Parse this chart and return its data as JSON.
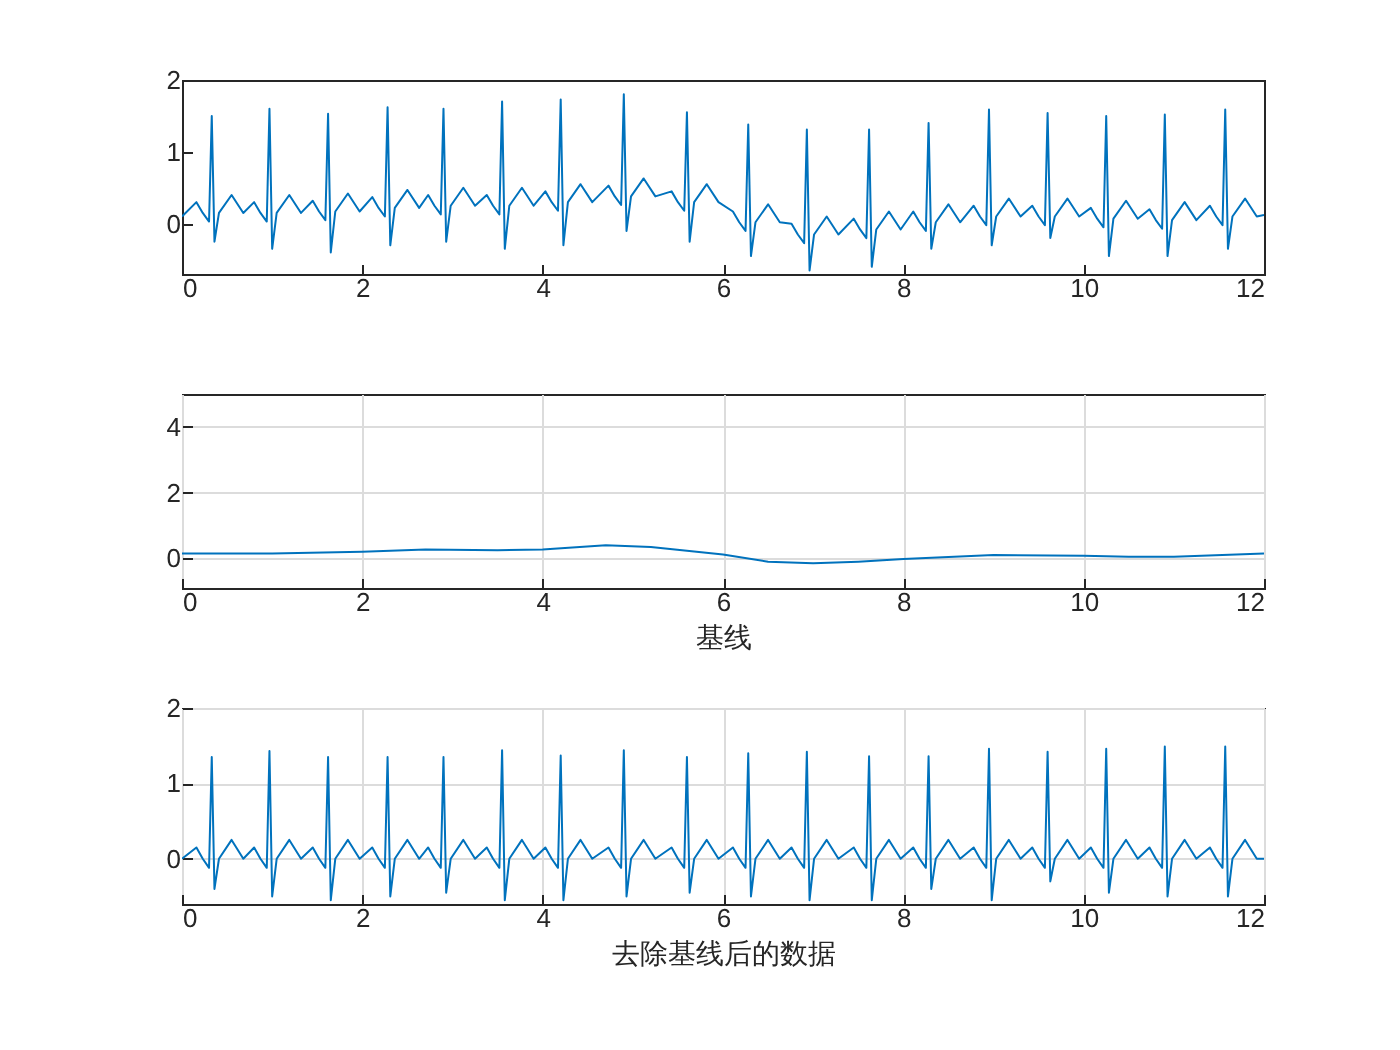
{
  "chart_data": [
    {
      "type": "line",
      "color": "#0072bd",
      "grid": false,
      "xlim": [
        0,
        12
      ],
      "xticks": [
        0,
        2,
        4,
        6,
        8,
        10,
        12
      ],
      "ylim": [
        -0.7,
        2
      ],
      "yticks": [
        0,
        1,
        2
      ],
      "x": [
        0,
        0.16,
        0.23,
        0.3,
        0.33,
        0.36,
        0.41,
        0.55,
        0.68,
        0.8,
        0.87,
        0.94,
        0.97,
        1.0,
        1.05,
        1.19,
        1.32,
        1.45,
        1.52,
        1.59,
        1.62,
        1.65,
        1.7,
        1.84,
        1.97,
        2.11,
        2.18,
        2.25,
        2.28,
        2.31,
        2.36,
        2.5,
        2.63,
        2.73,
        2.8,
        2.87,
        2.9,
        2.93,
        2.98,
        3.12,
        3.25,
        3.38,
        3.45,
        3.52,
        3.55,
        3.58,
        3.63,
        3.77,
        3.9,
        4.03,
        4.1,
        4.17,
        4.2,
        4.23,
        4.28,
        4.42,
        4.55,
        4.73,
        4.8,
        4.87,
        4.9,
        4.93,
        4.98,
        5.12,
        5.25,
        5.43,
        5.5,
        5.57,
        5.6,
        5.63,
        5.68,
        5.82,
        5.95,
        6.11,
        6.18,
        6.25,
        6.28,
        6.31,
        6.36,
        6.5,
        6.63,
        6.76,
        6.83,
        6.9,
        6.93,
        6.96,
        7.01,
        7.15,
        7.28,
        7.45,
        7.52,
        7.59,
        7.62,
        7.65,
        7.7,
        7.84,
        7.97,
        8.11,
        8.18,
        8.25,
        8.28,
        8.31,
        8.36,
        8.5,
        8.63,
        8.78,
        8.85,
        8.92,
        8.95,
        8.98,
        9.03,
        9.17,
        9.3,
        9.43,
        9.5,
        9.57,
        9.6,
        9.63,
        9.68,
        9.82,
        9.95,
        10.08,
        10.15,
        10.22,
        10.25,
        10.28,
        10.33,
        10.47,
        10.6,
        10.73,
        10.8,
        10.87,
        10.9,
        10.93,
        10.98,
        11.12,
        11.25,
        11.4,
        11.47,
        11.54,
        11.57,
        11.6,
        11.65,
        11.79,
        11.92,
        12
      ],
      "values": [
        0.1,
        0.3,
        0.15,
        0.03,
        1.5,
        -0.25,
        0.15,
        0.4,
        0.15,
        0.3,
        0.15,
        0.03,
        1.6,
        -0.35,
        0.15,
        0.4,
        0.15,
        0.32,
        0.17,
        0.05,
        1.53,
        -0.4,
        0.17,
        0.42,
        0.17,
        0.37,
        0.22,
        0.1,
        1.62,
        -0.3,
        0.22,
        0.47,
        0.22,
        0.4,
        0.25,
        0.13,
        1.6,
        -0.25,
        0.25,
        0.5,
        0.25,
        0.4,
        0.25,
        0.13,
        1.7,
        -0.35,
        0.25,
        0.5,
        0.25,
        0.45,
        0.3,
        0.18,
        1.73,
        -0.3,
        0.3,
        0.55,
        0.3,
        0.53,
        0.38,
        0.26,
        1.8,
        -0.1,
        0.38,
        0.63,
        0.38,
        0.45,
        0.3,
        0.18,
        1.55,
        -0.25,
        0.3,
        0.55,
        0.3,
        0.17,
        0.02,
        -0.1,
        1.38,
        -0.45,
        0.02,
        0.27,
        0.02,
        0,
        -0.15,
        -0.27,
        1.31,
        -0.65,
        -0.15,
        0.1,
        -0.15,
        0.07,
        -0.08,
        -0.2,
        1.31,
        -0.6,
        -0.08,
        0.17,
        -0.08,
        0.17,
        0.02,
        -0.1,
        1.4,
        -0.35,
        0.02,
        0.27,
        0.02,
        0.25,
        0.1,
        -0.02,
        1.59,
        -0.3,
        0.1,
        0.35,
        0.1,
        0.25,
        0.1,
        -0.02,
        1.54,
        -0.2,
        0.1,
        0.35,
        0.1,
        0.22,
        0.07,
        -0.05,
        1.5,
        -0.45,
        0.07,
        0.32,
        0.07,
        0.2,
        0.05,
        -0.07,
        1.52,
        -0.45,
        0.05,
        0.3,
        0.05,
        0.25,
        0.1,
        -0.02,
        1.59,
        -0.35,
        0.1,
        0.35,
        0.1,
        0.12
      ]
    },
    {
      "type": "line",
      "color": "#0072bd",
      "grid": true,
      "xlabel": "基线",
      "xlim": [
        0,
        12
      ],
      "xticks": [
        0,
        2,
        4,
        6,
        8,
        10,
        12
      ],
      "ylim": [
        -0.9,
        5
      ],
      "yticks": [
        0,
        2,
        4
      ],
      "x": [
        0,
        1,
        2,
        2.7,
        3.5,
        4,
        4.7,
        5.2,
        6,
        6.5,
        7,
        7.5,
        8,
        9,
        10,
        10.5,
        11,
        12
      ],
      "values": [
        0.15,
        0.15,
        0.2,
        0.27,
        0.25,
        0.27,
        0.4,
        0.35,
        0.12,
        -0.1,
        -0.15,
        -0.1,
        -0.02,
        0.1,
        0.08,
        0.05,
        0.05,
        0.15
      ]
    },
    {
      "type": "line",
      "color": "#0072bd",
      "grid": true,
      "xlabel": "去除基线后的数据",
      "xlim": [
        0,
        12
      ],
      "xticks": [
        0,
        2,
        4,
        6,
        8,
        10,
        12
      ],
      "ylim": [
        -0.6,
        2
      ],
      "yticks": [
        0,
        1,
        2
      ],
      "x": [
        0,
        0.16,
        0.23,
        0.3,
        0.33,
        0.36,
        0.41,
        0.55,
        0.68,
        0.8,
        0.87,
        0.94,
        0.97,
        1.0,
        1.05,
        1.19,
        1.32,
        1.45,
        1.52,
        1.59,
        1.62,
        1.65,
        1.7,
        1.84,
        1.97,
        2.11,
        2.18,
        2.25,
        2.28,
        2.31,
        2.36,
        2.5,
        2.63,
        2.73,
        2.8,
        2.87,
        2.9,
        2.93,
        2.98,
        3.12,
        3.25,
        3.38,
        3.45,
        3.52,
        3.55,
        3.58,
        3.63,
        3.77,
        3.9,
        4.03,
        4.1,
        4.17,
        4.2,
        4.23,
        4.28,
        4.42,
        4.55,
        4.73,
        4.8,
        4.87,
        4.9,
        4.93,
        4.98,
        5.12,
        5.25,
        5.43,
        5.5,
        5.57,
        5.6,
        5.63,
        5.68,
        5.82,
        5.95,
        6.11,
        6.18,
        6.25,
        6.28,
        6.31,
        6.36,
        6.5,
        6.63,
        6.76,
        6.83,
        6.9,
        6.93,
        6.96,
        7.01,
        7.15,
        7.28,
        7.45,
        7.52,
        7.59,
        7.62,
        7.65,
        7.7,
        7.84,
        7.97,
        8.11,
        8.18,
        8.25,
        8.28,
        8.31,
        8.36,
        8.5,
        8.63,
        8.78,
        8.85,
        8.92,
        8.95,
        8.98,
        9.03,
        9.17,
        9.3,
        9.43,
        9.5,
        9.57,
        9.6,
        9.63,
        9.68,
        9.82,
        9.95,
        10.08,
        10.15,
        10.22,
        10.25,
        10.28,
        10.33,
        10.47,
        10.6,
        10.73,
        10.8,
        10.87,
        10.9,
        10.93,
        10.98,
        11.12,
        11.25,
        11.4,
        11.47,
        11.54,
        11.57,
        11.6,
        11.65,
        11.79,
        11.92,
        12
      ],
      "values": [
        0,
        0.15,
        0,
        -0.12,
        1.35,
        -0.4,
        0,
        0.25,
        0,
        0.15,
        0,
        -0.12,
        1.43,
        -0.5,
        0,
        0.25,
        0,
        0.15,
        0,
        -0.12,
        1.35,
        -0.55,
        0,
        0.25,
        0,
        0.15,
        0,
        -0.12,
        1.35,
        -0.5,
        0,
        0.25,
        0,
        0.15,
        0,
        -0.12,
        1.35,
        -0.45,
        0,
        0.25,
        0,
        0.15,
        0,
        -0.12,
        1.44,
        -0.55,
        0,
        0.25,
        0,
        0.15,
        0,
        -0.12,
        1.37,
        -0.55,
        0,
        0.25,
        0,
        0.15,
        0,
        -0.12,
        1.44,
        -0.5,
        0,
        0.25,
        0,
        0.15,
        0,
        -0.12,
        1.35,
        -0.45,
        0,
        0.25,
        0,
        0.15,
        0,
        -0.12,
        1.4,
        -0.5,
        0,
        0.25,
        0,
        0.15,
        0,
        -0.12,
        1.42,
        -0.55,
        0,
        0.25,
        0,
        0.15,
        0,
        -0.12,
        1.36,
        -0.55,
        0,
        0.25,
        0,
        0.15,
        0,
        -0.12,
        1.36,
        -0.4,
        0,
        0.25,
        0,
        0.15,
        0,
        -0.12,
        1.46,
        -0.55,
        0,
        0.25,
        0,
        0.15,
        0,
        -0.12,
        1.42,
        -0.3,
        0,
        0.25,
        0,
        0.15,
        0,
        -0.12,
        1.46,
        -0.45,
        0,
        0.25,
        0,
        0.15,
        0,
        -0.12,
        1.49,
        -0.5,
        0,
        0.25,
        0,
        0.15,
        0,
        -0.12,
        1.49,
        -0.5,
        0,
        0.25,
        0,
        0
      ]
    }
  ]
}
